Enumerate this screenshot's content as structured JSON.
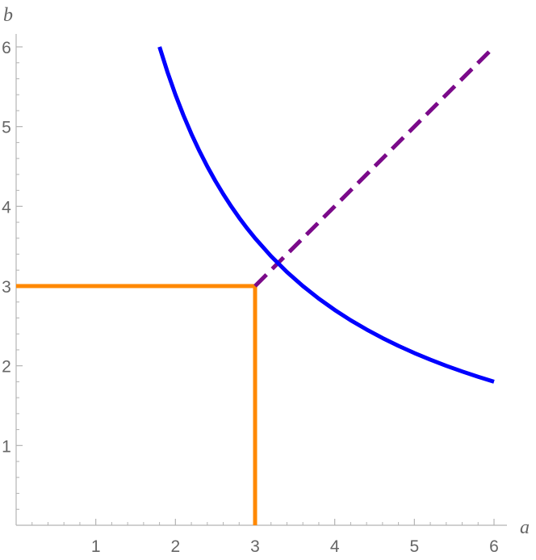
{
  "chart_data": {
    "type": "line",
    "title": "",
    "xlabel": "a",
    "ylabel": "b",
    "xlim": [
      0,
      6
    ],
    "ylim": [
      0,
      6
    ],
    "grid": false,
    "x_ticks": [
      1,
      2,
      3,
      4,
      5,
      6
    ],
    "y_ticks": [
      1,
      2,
      3,
      4,
      5,
      6
    ],
    "series": [
      {
        "key": "curve",
        "style": "solid",
        "color": "#0000ff",
        "points": [
          [
            1.8,
            6.0
          ],
          [
            1.9,
            5.684
          ],
          [
            2.0,
            5.4
          ],
          [
            2.1,
            5.143
          ],
          [
            2.2,
            4.909
          ],
          [
            2.3,
            4.696
          ],
          [
            2.4,
            4.5
          ],
          [
            2.5,
            4.32
          ],
          [
            2.6,
            4.154
          ],
          [
            2.7,
            4.0
          ],
          [
            2.8,
            3.857
          ],
          [
            2.9,
            3.724
          ],
          [
            3.0,
            3.6
          ],
          [
            3.2,
            3.375
          ],
          [
            3.4,
            3.176
          ],
          [
            3.6,
            3.0
          ],
          [
            3.8,
            2.842
          ],
          [
            4.0,
            2.7
          ],
          [
            4.2,
            2.571
          ],
          [
            4.4,
            2.455
          ],
          [
            4.6,
            2.348
          ],
          [
            4.8,
            2.25
          ],
          [
            5.0,
            2.16
          ],
          [
            5.2,
            2.077
          ],
          [
            5.4,
            2.0
          ],
          [
            5.6,
            1.929
          ],
          [
            5.8,
            1.862
          ],
          [
            6.0,
            1.8
          ]
        ]
      },
      {
        "key": "dashed-line",
        "style": "dashed",
        "color": "#7b0a8a",
        "points": [
          [
            3,
            3
          ],
          [
            6,
            6
          ]
        ]
      },
      {
        "key": "horizontal-guide",
        "style": "solid",
        "color": "#ff8800",
        "points": [
          [
            0,
            3
          ],
          [
            3,
            3
          ]
        ]
      },
      {
        "key": "vertical-guide",
        "style": "solid",
        "color": "#ff8800",
        "points": [
          [
            3,
            0
          ],
          [
            3,
            3
          ]
        ]
      }
    ]
  }
}
